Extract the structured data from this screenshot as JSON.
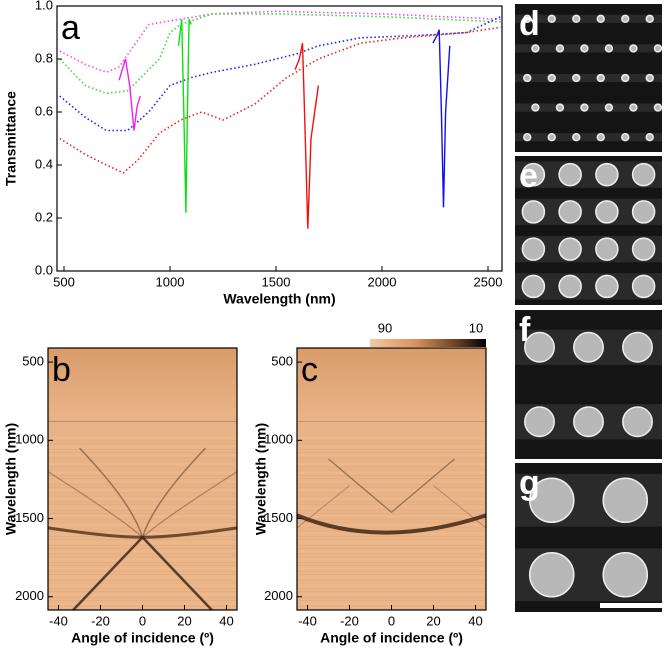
{
  "chart_data": [
    {
      "type": "line",
      "panel_label": "a",
      "x_label": "Wavelength (nm)",
      "y_label": "Transmittance",
      "xlim": [
        467,
        2566
      ],
      "xticks": [
        500,
        1000,
        1500,
        2000,
        2500
      ],
      "ylim": [
        0,
        1
      ],
      "yticks": [
        {
          "value": 0,
          "label": "0.0"
        },
        0.2,
        0.4,
        0.6,
        0.8,
        {
          "value": 1,
          "label": "1.0"
        }
      ],
      "series": [
        {
          "color": "#ff44ff",
          "line_style": "dotted",
          "x": [
            480,
            600,
            700,
            760,
            900,
            1200,
            1500,
            2000,
            2560
          ],
          "values": [
            0.83,
            0.78,
            0.75,
            0.77,
            0.93,
            0.97,
            0.98,
            0.97,
            0.95
          ]
        },
        {
          "color": "#33dd33",
          "line_style": "dotted",
          "x": [
            480,
            600,
            700,
            800,
            950,
            1000,
            1050,
            1200,
            1500,
            2000,
            2560
          ],
          "values": [
            0.8,
            0.7,
            0.67,
            0.68,
            0.8,
            0.9,
            0.93,
            0.97,
            0.97,
            0.96,
            0.94
          ]
        },
        {
          "color": "#2222ee",
          "line_style": "dotted",
          "x": [
            480,
            600,
            700,
            800,
            900,
            1000,
            1100,
            1200,
            1400,
            1600,
            1700,
            1900,
            2200,
            2400,
            2560
          ],
          "values": [
            0.66,
            0.58,
            0.53,
            0.53,
            0.6,
            0.7,
            0.73,
            0.75,
            0.78,
            0.82,
            0.85,
            0.88,
            0.89,
            0.9,
            0.96
          ]
        },
        {
          "color": "#ee2222",
          "line_style": "dotted",
          "x": [
            480,
            600,
            700,
            780,
            850,
            950,
            1050,
            1150,
            1250,
            1400,
            1550,
            1700,
            1900,
            2100,
            2400,
            2560
          ],
          "values": [
            0.5,
            0.44,
            0.4,
            0.37,
            0.42,
            0.52,
            0.57,
            0.6,
            0.57,
            0.63,
            0.73,
            0.8,
            0.86,
            0.88,
            0.9,
            0.92
          ]
        },
        {
          "color": "#ee22ee",
          "line_style": "solid",
          "x": [
            760,
            790,
            810,
            830,
            845,
            860
          ],
          "values": [
            0.72,
            0.8,
            0.7,
            0.53,
            0.62,
            0.66
          ]
        },
        {
          "color": "#11dd11",
          "line_style": "solid",
          "x": [
            1040,
            1055,
            1065,
            1075,
            1082,
            1090,
            1100
          ],
          "values": [
            0.85,
            0.95,
            0.6,
            0.22,
            0.6,
            0.95,
            0.93
          ]
        },
        {
          "color": "#ee1111",
          "line_style": "solid",
          "x": [
            1590,
            1610,
            1625,
            1638,
            1650,
            1665,
            1700
          ],
          "values": [
            0.76,
            0.8,
            0.86,
            0.5,
            0.16,
            0.5,
            0.7
          ]
        },
        {
          "color": "#1111ee",
          "line_style": "solid",
          "x": [
            2240,
            2260,
            2270,
            2280,
            2290,
            2300,
            2320
          ],
          "values": [
            0.86,
            0.89,
            0.91,
            0.6,
            0.24,
            0.6,
            0.85
          ]
        }
      ]
    },
    {
      "type": "heatmap",
      "panel_label": "b",
      "x_label": "Angle of incidence (º)",
      "y_label": "Wavelength (nm)",
      "xlim": [
        -45,
        45
      ],
      "xticks": [
        -40,
        -20,
        0,
        20,
        40
      ],
      "ylim": [
        2085,
        410
      ],
      "yticks": [
        500,
        1000,
        1500,
        2000
      ]
    },
    {
      "type": "heatmap",
      "panel_label": "c",
      "x_label": "Angle of incidence (º)",
      "y_label": "Wavelength (nm)",
      "xlim": [
        -45,
        45
      ],
      "xticks": [
        -40,
        -20,
        0,
        20,
        40
      ],
      "ylim": [
        2085,
        410
      ],
      "yticks": [
        500,
        1000,
        1500,
        2000
      ],
      "colorbar": {
        "ticks": [
          90,
          10
        ]
      }
    }
  ],
  "images": [
    {
      "label": "d"
    },
    {
      "label": "e"
    },
    {
      "label": "f"
    },
    {
      "label": "g"
    }
  ]
}
